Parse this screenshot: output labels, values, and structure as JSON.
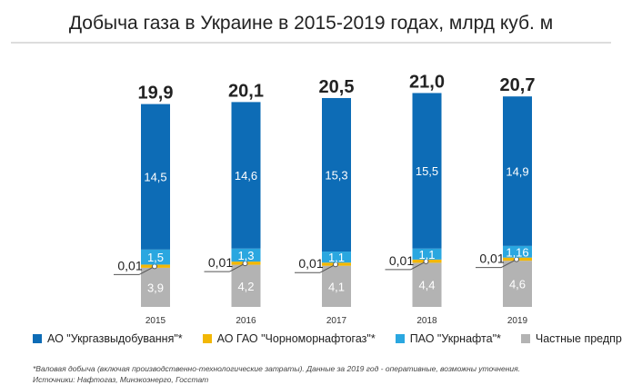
{
  "chart_data": {
    "type": "bar",
    "stacked": true,
    "title": "Добыча газа в Украине в 2015-2019 годах, млрд куб. м",
    "categories": [
      "2015",
      "2016",
      "2017",
      "2018",
      "2019"
    ],
    "totals": [
      "19,9",
      "20,1",
      "20,5",
      "21,0",
      "20,7"
    ],
    "series": [
      {
        "name": "Частные предприятия",
        "color": "#b3b3b3",
        "text_color": "#ffffff",
        "values": [
          3.9,
          4.2,
          4.1,
          4.4,
          4.6
        ],
        "labels": [
          "3,9",
          "4,2",
          "4,1",
          "4,4",
          "4,6"
        ]
      },
      {
        "name": "АО ГАО \"Чорноморнафтогаз\"*",
        "color": "#f2b705",
        "values": [
          0.01,
          0.01,
          0.01,
          0.01,
          0.01
        ],
        "labels": [
          "0,01",
          "0,01",
          "0,01",
          "0,01",
          "0,01"
        ]
      },
      {
        "name": "ПАО \"Укрнафта\"*",
        "color": "#2aa7e0",
        "text_color": "#ffffff",
        "values": [
          1.5,
          1.3,
          1.1,
          1.1,
          1.16
        ],
        "labels": [
          "1,5",
          "1,3",
          "1,1",
          "1,1",
          "1,16"
        ]
      },
      {
        "name": "АО \"Укргазвыдобування\"*",
        "color": "#0d6cb6",
        "text_color": "#ffffff",
        "values": [
          14.5,
          14.6,
          15.3,
          15.5,
          14.9
        ],
        "labels": [
          "14,5",
          "14,6",
          "15,3",
          "15,5",
          "14,9"
        ]
      }
    ],
    "legend_order": [
      3,
      1,
      2,
      0
    ],
    "legend_position": "bottom",
    "grid": false
  },
  "notes": {
    "footnote": "*Валовая добыча (включая производственно-технологические затраты). Данные за 2019 год - оперативные, возможны уточнения.",
    "sources": "Источники: Нафтогаз, Минэкоэнерго, Госстат"
  }
}
